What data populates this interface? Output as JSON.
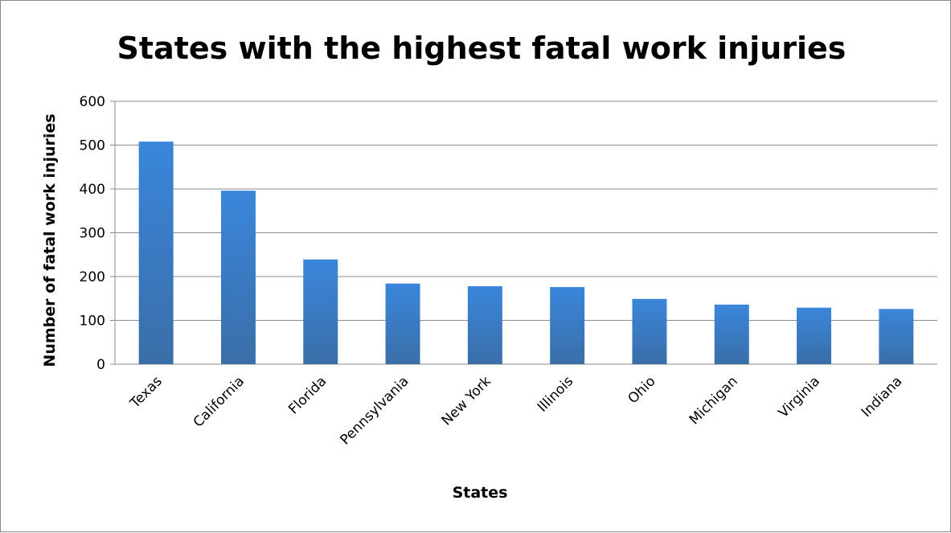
{
  "chart_data": {
    "type": "bar",
    "title": "States with the highest fatal work injuries",
    "xlabel": "States",
    "ylabel": "Number of fatal work injuries",
    "categories": [
      "Texas",
      "California",
      "Florida",
      "Pennsylvania",
      "New York",
      "Illinois",
      "Ohio",
      "Michigan",
      "Virginia",
      "Indiana"
    ],
    "values": [
      508,
      396,
      239,
      184,
      178,
      176,
      149,
      136,
      129,
      126
    ],
    "ylim": [
      0,
      600
    ],
    "yticks": [
      0,
      100,
      200,
      300,
      400,
      500,
      600
    ],
    "grid": true,
    "legend": "none",
    "bar_color_top": "#3a86db",
    "bar_color_bottom": "#3a6ea8"
  }
}
